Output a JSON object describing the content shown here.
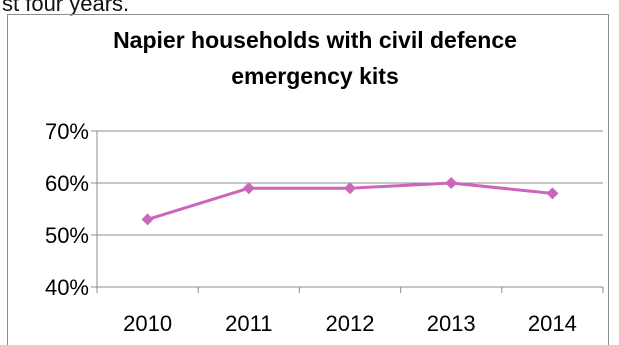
{
  "leading_text": "st four years.",
  "chart_data": {
    "type": "line",
    "title_lines": [
      "Napier households with civil defence",
      "emergency kits"
    ],
    "categories": [
      "2010",
      "2011",
      "2012",
      "2013",
      "2014"
    ],
    "series": [
      {
        "values": [
          53,
          59,
          59,
          60,
          58
        ],
        "color": "#cc66bb",
        "marker": "diamond"
      }
    ],
    "ylim": [
      40,
      70
    ],
    "yticks": [
      "40%",
      "50%",
      "60%",
      "70%"
    ],
    "ytick_values": [
      40,
      50,
      60,
      70
    ],
    "grid": true,
    "legend": "none"
  }
}
